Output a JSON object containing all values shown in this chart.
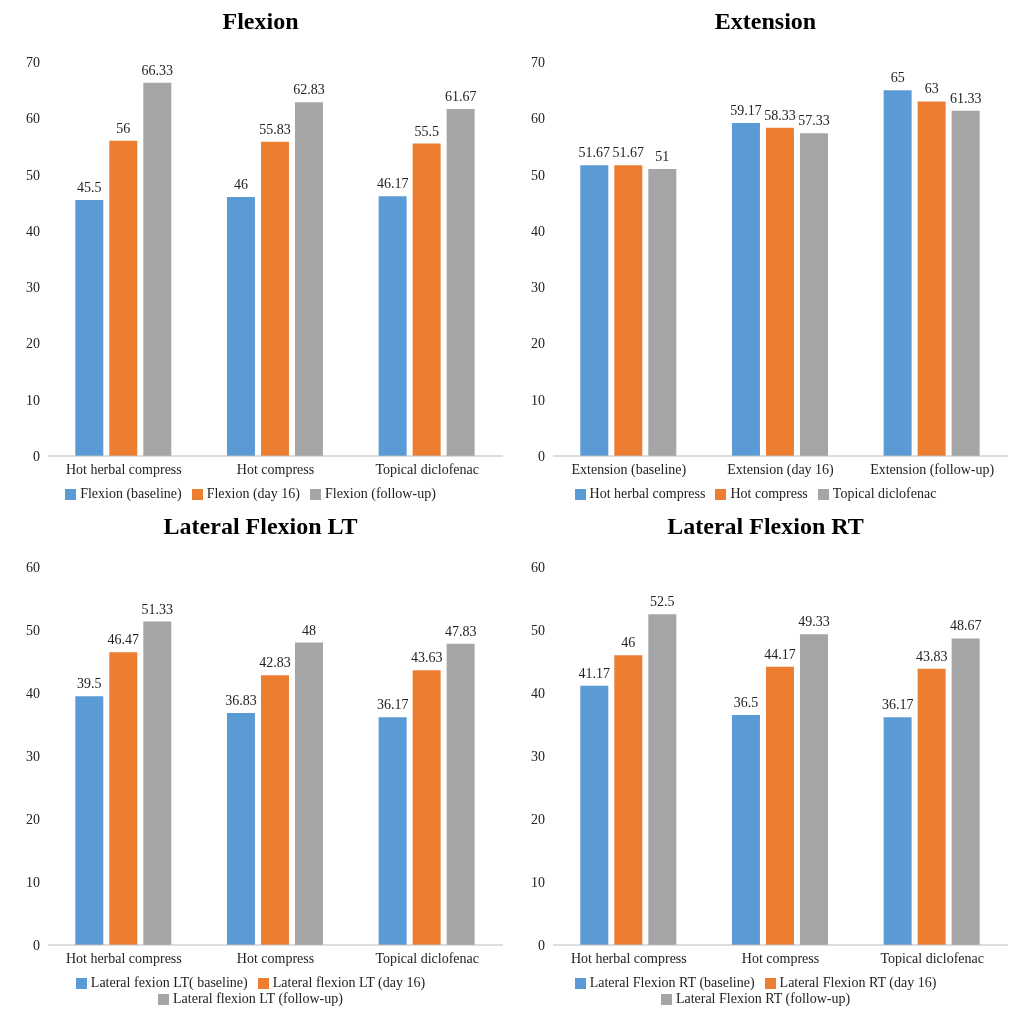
{
  "chart_data": [
    {
      "type": "bar",
      "title": "Flexion",
      "categories": [
        "Hot herbal compress",
        "Hot compress",
        "Topical diclofenac"
      ],
      "series": [
        {
          "name": "Flexion (baseline)",
          "color": "#5b9bd5",
          "values": [
            45.5,
            46,
            46.17
          ]
        },
        {
          "name": "Flexion (day 16)",
          "color": "#ed7d31",
          "values": [
            56,
            55.83,
            55.5
          ]
        },
        {
          "name": "Flexion (follow-up)",
          "color": "#a5a5a5",
          "values": [
            66.33,
            62.83,
            61.67
          ]
        }
      ],
      "ylim": [
        0,
        70
      ],
      "yticks": [
        0,
        10,
        20,
        30,
        40,
        50,
        60,
        70
      ],
      "data_labels": true,
      "legend": "bottom"
    },
    {
      "type": "bar",
      "title": "Extension",
      "categories": [
        "Extension (baseline)",
        "Extension (day 16)",
        "Extension (follow-up)"
      ],
      "series": [
        {
          "name": "Hot herbal compress",
          "color": "#5b9bd5",
          "values": [
            51.67,
            59.17,
            65
          ]
        },
        {
          "name": "Hot compress",
          "color": "#ed7d31",
          "values": [
            51.67,
            58.33,
            63
          ]
        },
        {
          "name": "Topical diclofenac",
          "color": "#a5a5a5",
          "values": [
            51,
            57.33,
            61.33
          ]
        }
      ],
      "ylim": [
        0,
        70
      ],
      "yticks": [
        0,
        10,
        20,
        30,
        40,
        50,
        60,
        70
      ],
      "data_labels": true,
      "legend": "bottom"
    },
    {
      "type": "bar",
      "title": "Lateral Flexion LT",
      "categories": [
        "Hot herbal compress",
        "Hot compress",
        "Topical diclofenac"
      ],
      "series": [
        {
          "name": "Lateral fexion LT( baseline)",
          "color": "#5b9bd5",
          "values": [
            39.5,
            36.83,
            36.17
          ]
        },
        {
          "name": "Lateral flexion LT (day 16)",
          "color": "#ed7d31",
          "values": [
            46.47,
            42.83,
            43.63
          ]
        },
        {
          "name": "Lateral flexion LT (follow-up)",
          "color": "#a5a5a5",
          "values": [
            51.33,
            48,
            47.83
          ]
        }
      ],
      "ylim": [
        0,
        60
      ],
      "yticks": [
        0,
        10,
        20,
        30,
        40,
        50,
        60
      ],
      "data_labels": true,
      "legend": "bottom"
    },
    {
      "type": "bar",
      "title": "Lateral Flexion RT",
      "categories": [
        "Hot herbal compress",
        "Hot compress",
        "Topical diclofenac"
      ],
      "series": [
        {
          "name": "Lateral Flexion RT (baseline)",
          "color": "#5b9bd5",
          "values": [
            41.17,
            36.5,
            36.17
          ]
        },
        {
          "name": "Lateral Flexion RT (day 16)",
          "color": "#ed7d31",
          "values": [
            46,
            44.17,
            43.83
          ]
        },
        {
          "name": "Lateral Flexion RT (follow-up)",
          "color": "#a5a5a5",
          "values": [
            52.5,
            49.33,
            48.67
          ]
        }
      ],
      "ylim": [
        0,
        60
      ],
      "yticks": [
        0,
        10,
        20,
        30,
        40,
        50,
        60
      ],
      "data_labels": true,
      "legend": "bottom"
    }
  ]
}
